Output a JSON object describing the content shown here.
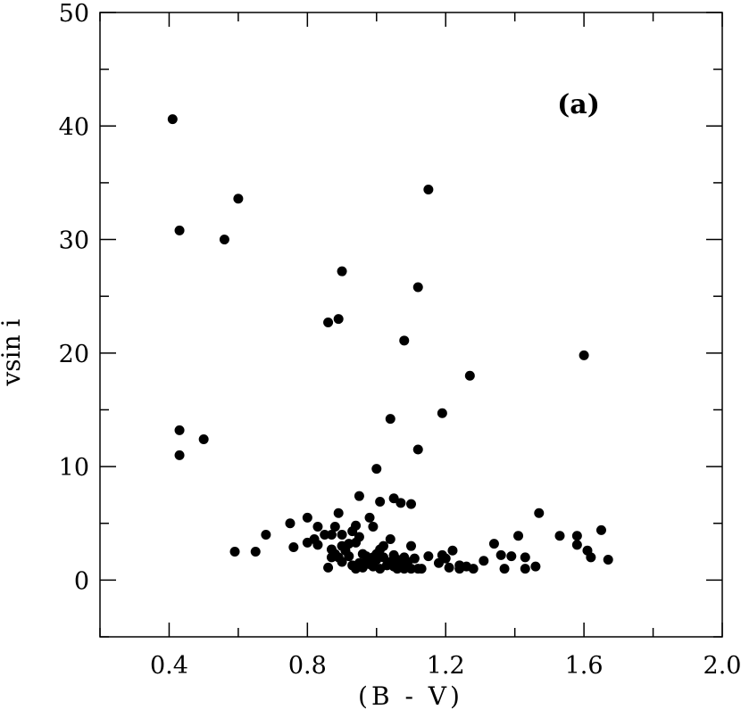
{
  "chart_data": {
    "type": "scatter",
    "title": "",
    "xlabel": "(B - V)",
    "ylabel": "vsin i",
    "annotation": "(a)",
    "xlim": [
      0.2,
      2.0
    ],
    "ylim": [
      -5,
      50
    ],
    "xticks": [
      "0.4",
      "0.8",
      "1.2",
      "1.6",
      "2.0"
    ],
    "yticks": [
      "0",
      "10",
      "20",
      "30",
      "40",
      "50"
    ],
    "grid": false,
    "marker_color": "#000000",
    "series": [
      {
        "points": [
          [
            0.41,
            40.6
          ],
          [
            0.43,
            30.8
          ],
          [
            0.43,
            13.2
          ],
          [
            0.43,
            11.0
          ],
          [
            0.5,
            12.4
          ],
          [
            0.56,
            30.0
          ],
          [
            0.6,
            33.6
          ],
          [
            0.59,
            2.5
          ],
          [
            0.65,
            2.5
          ],
          [
            0.68,
            4.0
          ],
          [
            0.75,
            5.0
          ],
          [
            0.76,
            2.9
          ],
          [
            0.8,
            5.5
          ],
          [
            0.8,
            3.3
          ],
          [
            0.82,
            3.6
          ],
          [
            0.83,
            4.7
          ],
          [
            0.83,
            3.1
          ],
          [
            0.85,
            4.0
          ],
          [
            0.86,
            22.7
          ],
          [
            0.86,
            1.1
          ],
          [
            0.87,
            4.0
          ],
          [
            0.87,
            2.7
          ],
          [
            0.87,
            2.0
          ],
          [
            0.88,
            4.7
          ],
          [
            0.88,
            2.3
          ],
          [
            0.89,
            23.0
          ],
          [
            0.89,
            5.9
          ],
          [
            0.89,
            2.0
          ],
          [
            0.9,
            27.2
          ],
          [
            0.9,
            4.0
          ],
          [
            0.9,
            3.0
          ],
          [
            0.9,
            1.6
          ],
          [
            0.91,
            2.6
          ],
          [
            0.92,
            3.2
          ],
          [
            0.92,
            2.1
          ],
          [
            0.93,
            4.3
          ],
          [
            0.93,
            1.3
          ],
          [
            0.94,
            4.8
          ],
          [
            0.94,
            3.3
          ],
          [
            0.94,
            1.0
          ],
          [
            0.95,
            3.8
          ],
          [
            0.95,
            1.5
          ],
          [
            0.95,
            7.4
          ],
          [
            0.96,
            2.3
          ],
          [
            0.96,
            1.1
          ],
          [
            0.97,
            2.1
          ],
          [
            0.97,
            1.6
          ],
          [
            0.98,
            5.5
          ],
          [
            0.98,
            1.4
          ],
          [
            0.99,
            4.7
          ],
          [
            0.99,
            2.0
          ],
          [
            0.99,
            1.2
          ],
          [
            1.0,
            9.8
          ],
          [
            1.0,
            2.3
          ],
          [
            1.0,
            1.8
          ],
          [
            1.01,
            6.9
          ],
          [
            1.01,
            2.7
          ],
          [
            1.01,
            1.0
          ],
          [
            1.02,
            2.0
          ],
          [
            1.02,
            3.0
          ],
          [
            1.03,
            1.3
          ],
          [
            1.04,
            14.2
          ],
          [
            1.04,
            3.6
          ],
          [
            1.04,
            1.6
          ],
          [
            1.05,
            7.2
          ],
          [
            1.05,
            2.2
          ],
          [
            1.05,
            1.2
          ],
          [
            1.06,
            1.8
          ],
          [
            1.06,
            1.0
          ],
          [
            1.07,
            6.8
          ],
          [
            1.07,
            1.4
          ],
          [
            1.08,
            21.1
          ],
          [
            1.08,
            2.0
          ],
          [
            1.08,
            1.0
          ],
          [
            1.09,
            1.6
          ],
          [
            1.1,
            6.7
          ],
          [
            1.1,
            3.0
          ],
          [
            1.1,
            1.0
          ],
          [
            1.11,
            1.9
          ],
          [
            1.12,
            25.8
          ],
          [
            1.12,
            11.5
          ],
          [
            1.12,
            1.0
          ],
          [
            1.13,
            1.0
          ],
          [
            1.15,
            34.4
          ],
          [
            1.15,
            2.1
          ],
          [
            1.18,
            1.5
          ],
          [
            1.19,
            14.7
          ],
          [
            1.19,
            2.2
          ],
          [
            1.2,
            1.9
          ],
          [
            1.21,
            1.1
          ],
          [
            1.22,
            2.6
          ],
          [
            1.24,
            1.0
          ],
          [
            1.24,
            1.3
          ],
          [
            1.26,
            1.2
          ],
          [
            1.27,
            18.0
          ],
          [
            1.28,
            1.0
          ],
          [
            1.31,
            1.7
          ],
          [
            1.34,
            3.2
          ],
          [
            1.36,
            2.2
          ],
          [
            1.37,
            1.0
          ],
          [
            1.39,
            2.1
          ],
          [
            1.41,
            3.9
          ],
          [
            1.43,
            2.0
          ],
          [
            1.43,
            1.0
          ],
          [
            1.46,
            1.2
          ],
          [
            1.47,
            5.9
          ],
          [
            1.53,
            3.9
          ],
          [
            1.58,
            3.9
          ],
          [
            1.58,
            3.1
          ],
          [
            1.6,
            19.8
          ],
          [
            1.61,
            2.6
          ],
          [
            1.62,
            2.0
          ],
          [
            1.65,
            4.4
          ],
          [
            1.67,
            1.8
          ]
        ]
      }
    ]
  }
}
